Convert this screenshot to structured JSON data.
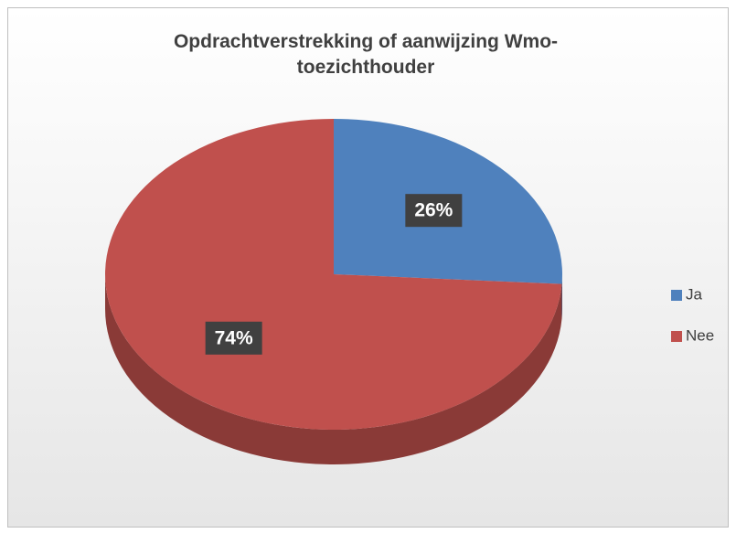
{
  "chart_data": {
    "type": "pie",
    "title": "Opdrachtverstrekking of aanwijzing Wmo-toezichthouder",
    "categories": [
      "Ja",
      "Nee"
    ],
    "values": [
      26,
      74
    ],
    "value_labels": [
      "26%",
      "74%"
    ],
    "colors": [
      "#4f81bd",
      "#c0504d"
    ],
    "legend": "right"
  }
}
